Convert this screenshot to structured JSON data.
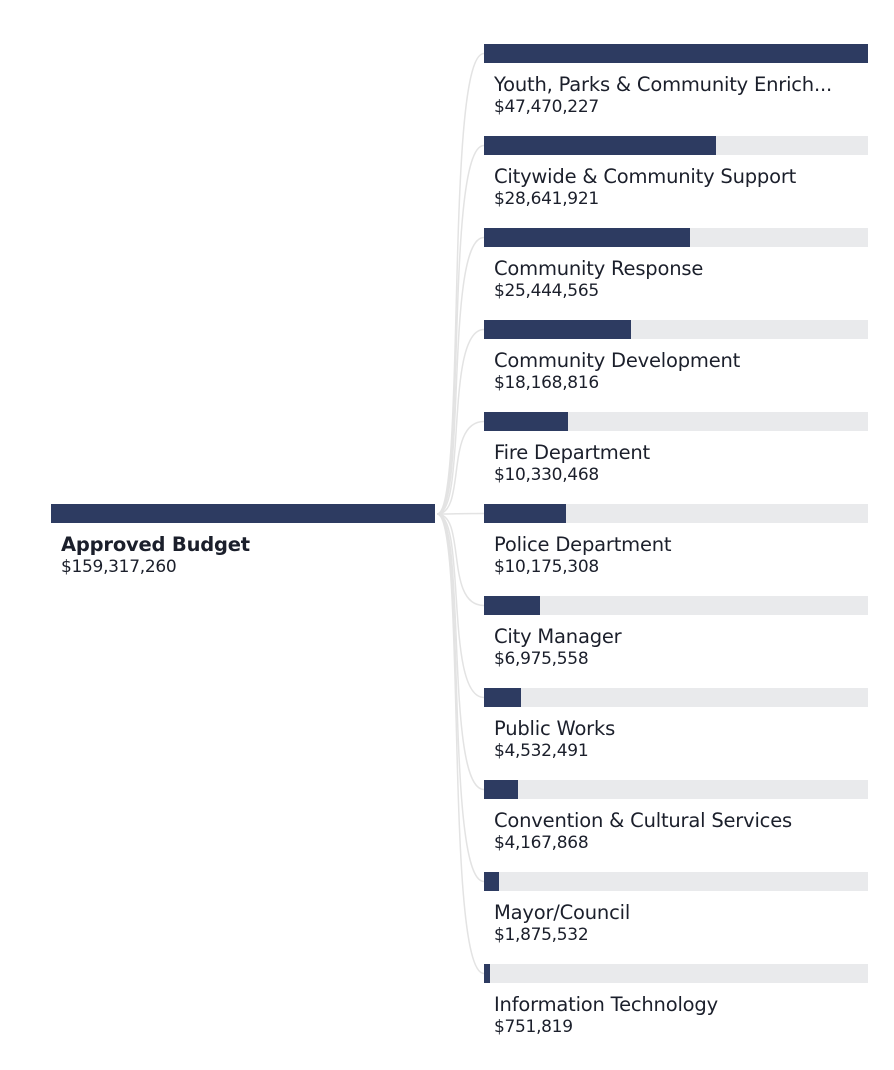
{
  "root": {
    "label": "Approved Budget",
    "value_text": "$159,317,260",
    "value": 159317260
  },
  "children": [
    {
      "label": "Youth, Parks & Community Enrich...",
      "value_text": "$47,470,227",
      "value": 47470227
    },
    {
      "label": "Citywide & Community Support",
      "value_text": "$28,641,921",
      "value": 28641921
    },
    {
      "label": "Community Response",
      "value_text": "$25,444,565",
      "value": 25444565
    },
    {
      "label": "Community Development",
      "value_text": "$18,168,816",
      "value": 18168816
    },
    {
      "label": "Fire Department",
      "value_text": "$10,330,468",
      "value": 10330468
    },
    {
      "label": "Police Department",
      "value_text": "$10,175,308",
      "value": 10175308
    },
    {
      "label": "City Manager",
      "value_text": "$6,975,558",
      "value": 6975558
    },
    {
      "label": "Public Works",
      "value_text": "$4,532,491",
      "value": 4532491
    },
    {
      "label": "Convention & Cultural Services",
      "value_text": "$4,167,868",
      "value": 4167868
    },
    {
      "label": "Mayor/Council",
      "value_text": "$1,875,532",
      "value": 1875532
    },
    {
      "label": "Information Technology",
      "value_text": "$751,819",
      "value": 751819
    }
  ],
  "colors": {
    "bar": "#2d3b61",
    "track": "#e9eaec",
    "link": "#e3e3e3"
  }
}
